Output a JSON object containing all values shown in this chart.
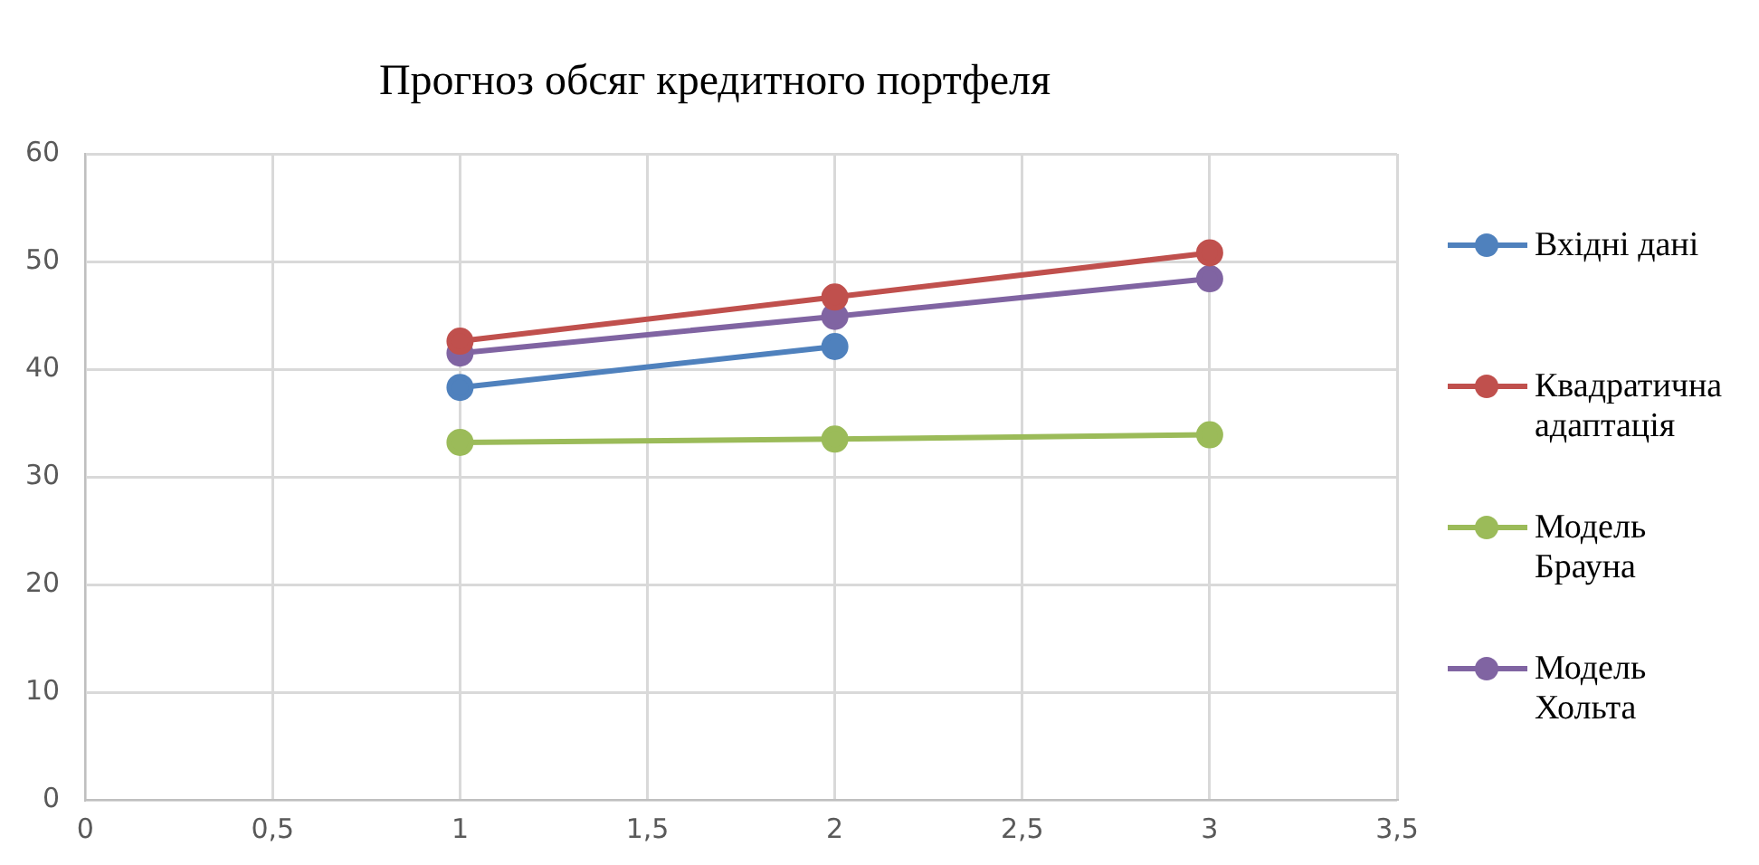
{
  "chart_data": {
    "type": "line",
    "title": "Прогноз обсяг кредитного портфеля",
    "x": [
      1,
      2,
      3
    ],
    "series": [
      {
        "name": "Вхідні дані",
        "color": "#4f81bd",
        "values": [
          38.3,
          42.1,
          null
        ]
      },
      {
        "name": "Квадратична адаптація",
        "color": "#c0504d",
        "values": [
          42.6,
          46.7,
          50.8
        ]
      },
      {
        "name": "Модель Брауна",
        "color": "#9bbb59",
        "values": [
          33.2,
          33.5,
          33.9
        ]
      },
      {
        "name": "Модель Хольта",
        "color": "#8064a2",
        "values": [
          41.5,
          44.9,
          48.4
        ]
      }
    ],
    "xlim": [
      0,
      3.5
    ],
    "xticks": [
      0,
      {
        "value": 0.5,
        "label": "0,5"
      },
      1,
      {
        "value": 1.5,
        "label": "1,5"
      },
      2,
      {
        "value": 2.5,
        "label": "2,5"
      },
      3,
      {
        "value": 3.5,
        "label": "3,5"
      }
    ],
    "ylim": [
      0,
      60
    ],
    "yticks": [
      0,
      10,
      20,
      30,
      40,
      50,
      60
    ],
    "grid": true,
    "legend": "right",
    "marker": "circle",
    "line_style": "solid"
  }
}
